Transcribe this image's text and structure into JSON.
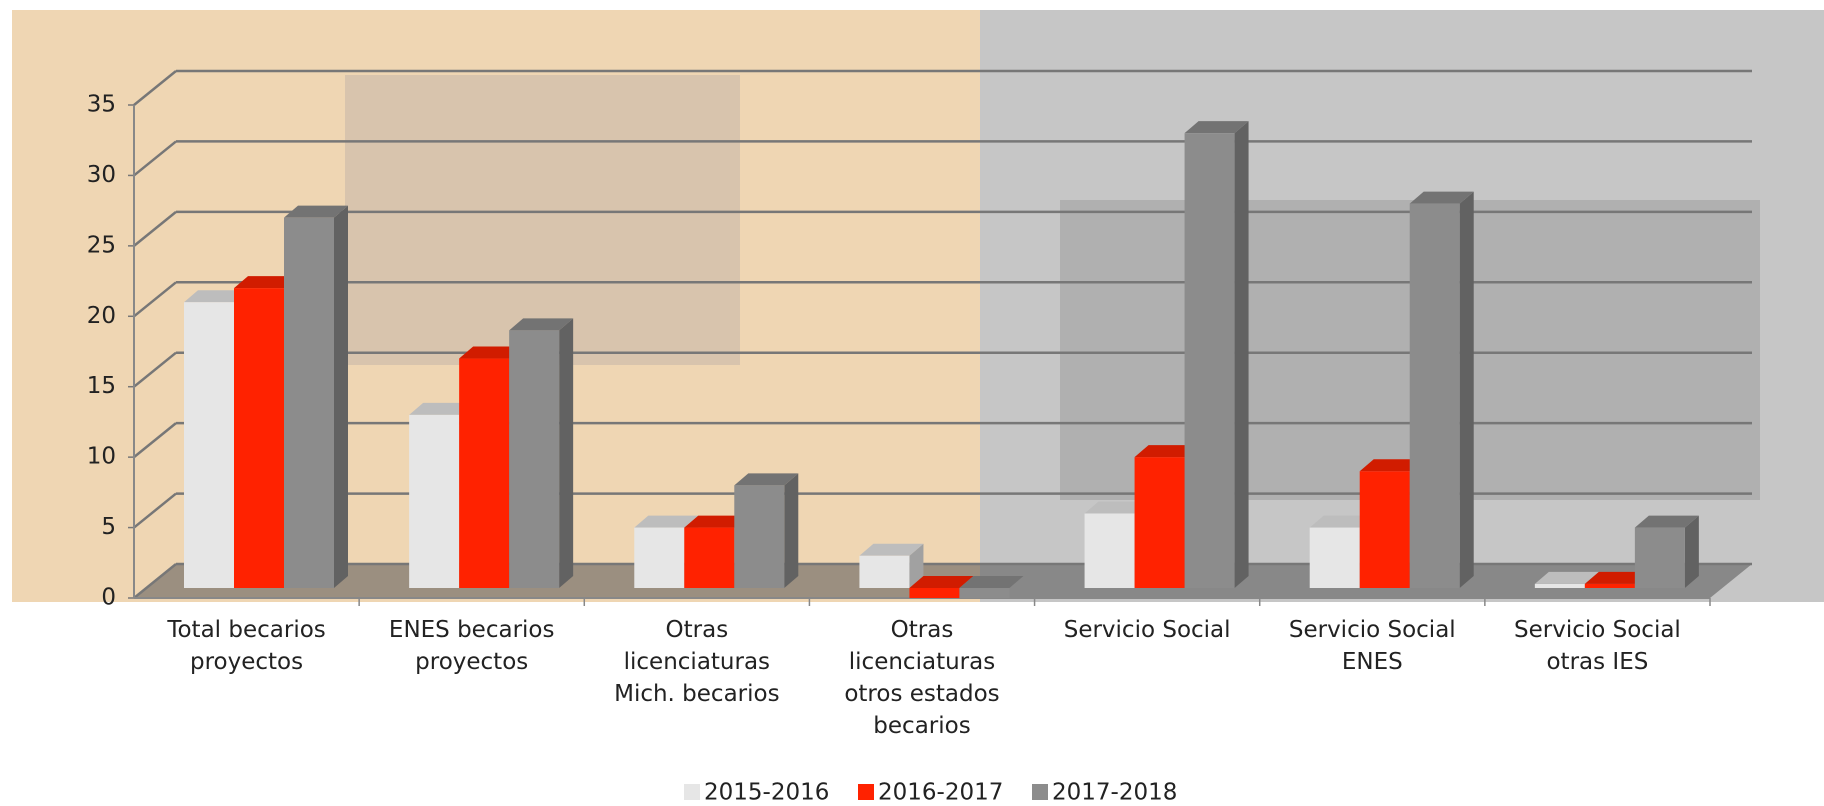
{
  "chart_data": {
    "type": "bar3d",
    "categories": [
      "Total becarios proyectos",
      "ENES becarios proyectos",
      "Otras licenciaturas Mich. becarios",
      "Otras licenciaturas otros estados becarios",
      "Servicio Social",
      "Servicio Social ENES",
      "Servicio Social otras IES"
    ],
    "series": [
      {
        "name": "2015-2016",
        "color": "#e6e6e6",
        "values": [
          21,
          13,
          5,
          3,
          6,
          5,
          1
        ]
      },
      {
        "name": "2016-2017",
        "color": "#ff2200",
        "values": [
          22,
          17,
          5,
          0,
          10,
          9,
          1
        ]
      },
      {
        "name": "2017-2018",
        "color": "#8c8c8c",
        "values": [
          27,
          19,
          8,
          0,
          33,
          28,
          5
        ]
      }
    ],
    "ylim": [
      0,
      35
    ],
    "yticks": [
      0,
      5,
      10,
      15,
      20,
      25,
      30,
      35
    ],
    "grid": true,
    "legend": "bottom"
  }
}
